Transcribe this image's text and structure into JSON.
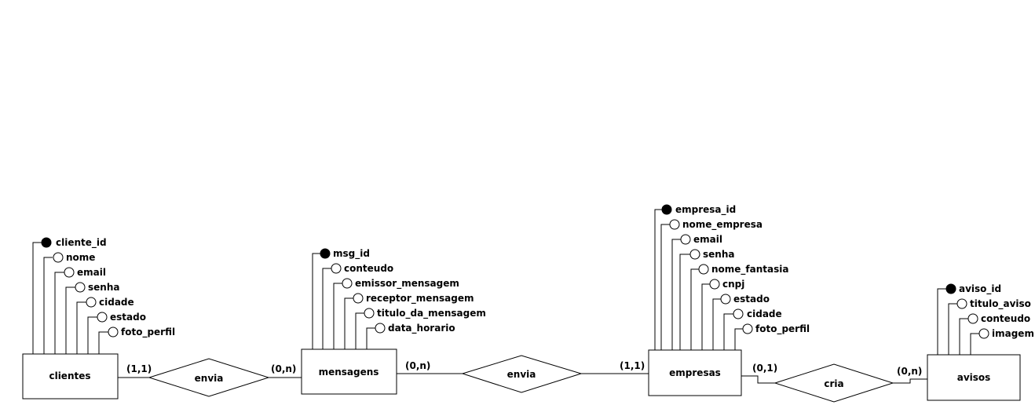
{
  "entities": {
    "clientes": {
      "name": "clientes",
      "attributes": [
        {
          "name": "cliente_id",
          "key": true
        },
        {
          "name": "nome",
          "key": false
        },
        {
          "name": "email",
          "key": false
        },
        {
          "name": "senha",
          "key": false
        },
        {
          "name": "cidade",
          "key": false
        },
        {
          "name": "estado",
          "key": false
        },
        {
          "name": "foto_perfil",
          "key": false
        }
      ]
    },
    "mensagens": {
      "name": "mensagens",
      "attributes": [
        {
          "name": "msg_id",
          "key": true
        },
        {
          "name": "conteudo",
          "key": false
        },
        {
          "name": "emissor_mensagem",
          "key": false
        },
        {
          "name": "receptor_mensagem",
          "key": false
        },
        {
          "name": "titulo_da_mensagem",
          "key": false
        },
        {
          "name": "data_horario",
          "key": false
        }
      ]
    },
    "empresas": {
      "name": "empresas",
      "attributes": [
        {
          "name": "empresa_id",
          "key": true
        },
        {
          "name": "nome_empresa",
          "key": false
        },
        {
          "name": "email",
          "key": false
        },
        {
          "name": "senha",
          "key": false
        },
        {
          "name": "nome_fantasia",
          "key": false
        },
        {
          "name": "cnpj",
          "key": false
        },
        {
          "name": "estado",
          "key": false
        },
        {
          "name": "cidade",
          "key": false
        },
        {
          "name": "foto_perfil",
          "key": false
        }
      ]
    },
    "avisos": {
      "name": "avisos",
      "attributes": [
        {
          "name": "aviso_id",
          "key": true
        },
        {
          "name": "titulo_aviso",
          "key": false
        },
        {
          "name": "conteudo",
          "key": false
        },
        {
          "name": "imagem",
          "key": false
        }
      ]
    }
  },
  "relationships": {
    "envia1": {
      "name": "envia",
      "card_left": "(1,1)",
      "card_right": "(0,n)"
    },
    "envia2": {
      "name": "envia",
      "card_left": "(0,n)",
      "card_right": "(1,1)"
    },
    "cria": {
      "name": "cria",
      "card_left": "(0,1)",
      "card_right": "(0,n)"
    }
  }
}
